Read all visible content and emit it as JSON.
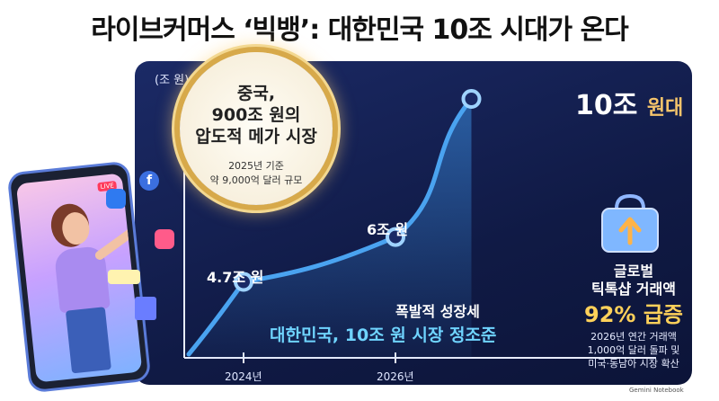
{
  "headline": "라이브커머스 ‘빅뱅’: 대한민국 10조 시대가 온다",
  "badge": {
    "title_lines": [
      "중국,",
      "900조 원의",
      "압도적 메가 시장"
    ],
    "sub_lines": [
      "2025년 기준",
      "약 9,000억 달러 규모"
    ]
  },
  "global": {
    "line1": "글로벌",
    "line2": "틱톡샵 거래액",
    "line3": "92% 급증",
    "sub_lines": [
      "2026년 연간 거래액",
      "1,000억 달러 돌파 및",
      "미국·동남아 시장 확산"
    ]
  },
  "trend": {
    "line1": "폭발적 성장세",
    "line2": "대한민국, 10조 원 시장 정조준"
  },
  "brand": "Gemini Notebook",
  "icons": [
    "facebook-icon",
    "cart-icon",
    "heart-icon",
    "stars-icon",
    "shopping-bag-icon",
    "phone-icon"
  ],
  "colors": {
    "panel": "#142056",
    "line": "#3a8ee0",
    "accent_gold": "#ffd15a",
    "accent_cyan": "#6fd4ff"
  },
  "chart_data": {
    "type": "line",
    "ylabel": "(조 원)",
    "x_ticks": [
      "2024년",
      "2026년"
    ],
    "points": [
      {
        "x": 2024,
        "y": 4.7,
        "label": "4.7조 원"
      },
      {
        "x": 2026,
        "y": 6,
        "label": "6조 원"
      },
      {
        "x": 2027,
        "y": 10,
        "label_main": "10조",
        "label_unit": "원대"
      }
    ]
  }
}
